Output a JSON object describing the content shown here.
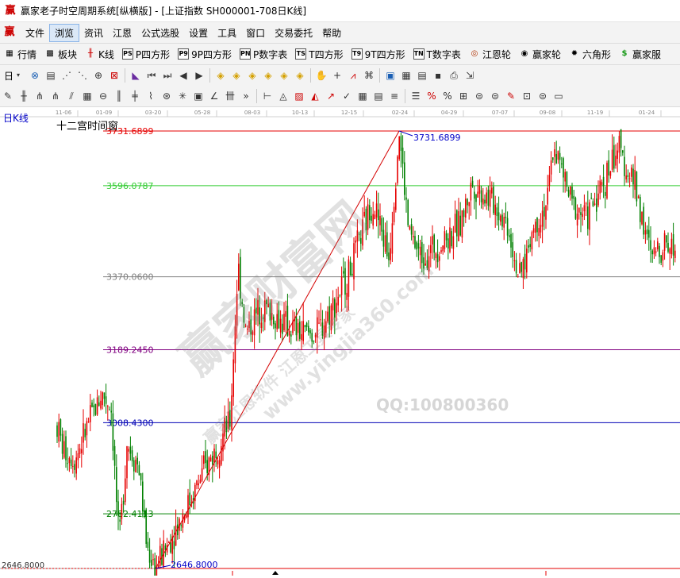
{
  "window": {
    "title": "赢家老子时空周期系统[纵横版] - [上证指数  SH000001-708日K线]"
  },
  "menu": {
    "items": [
      {
        "label": "文件",
        "name": "menu-file"
      },
      {
        "label": "浏览",
        "name": "menu-browse",
        "active": true
      },
      {
        "label": "资讯",
        "name": "menu-info"
      },
      {
        "label": "江恩",
        "name": "menu-gann"
      },
      {
        "label": "公式选股",
        "name": "menu-formula"
      },
      {
        "label": "设置",
        "name": "menu-settings"
      },
      {
        "label": "工具",
        "name": "menu-tools"
      },
      {
        "label": "窗口",
        "name": "menu-window"
      },
      {
        "label": "交易委托",
        "name": "menu-trade"
      },
      {
        "label": "帮助",
        "name": "menu-help"
      }
    ]
  },
  "toolbar1": {
    "items": [
      {
        "label": "行情",
        "icon": "quote-grid-icon"
      },
      {
        "label": "板块",
        "icon": "sector-icon"
      },
      {
        "label": "K线",
        "icon": "candlestick-icon"
      },
      {
        "label": "P四方形",
        "icon": "p-square-icon",
        "badge": "PS"
      },
      {
        "label": "9P四方形",
        "icon": "9p-square-icon",
        "badge": "P9"
      },
      {
        "label": "P数字表",
        "icon": "p-number-table-icon",
        "badge": "PN"
      },
      {
        "label": "T四方形",
        "icon": "t-square-icon",
        "badge": "TS"
      },
      {
        "label": "9T四方形",
        "icon": "9t-square-icon",
        "badge": "T9"
      },
      {
        "label": "T数字表",
        "icon": "t-number-table-icon",
        "badge": "TN"
      },
      {
        "label": "江恩轮",
        "icon": "gann-wheel-icon"
      },
      {
        "label": "赢家轮",
        "icon": "winner-wheel-icon"
      },
      {
        "label": "六角形",
        "icon": "hexagon-icon"
      },
      {
        "label": "赢家服",
        "icon": "dollar-icon"
      }
    ]
  },
  "toolbar2": {
    "period_label": "日",
    "icons": [
      "period-dropdown-icon",
      "zoom-icon",
      "doc-icon",
      "chart-up-icon",
      "chart-down-icon",
      "cursor-icon",
      "pattern-icon",
      "flag-icon",
      "skip-first-icon",
      "skip-last-icon",
      "step-back-icon",
      "step-forward-icon",
      "diamond-1-icon",
      "diamond-2-icon",
      "diamond-3-icon",
      "diamond-4-icon",
      "diamond-5-icon",
      "diamond-6-icon",
      "hand-icon",
      "crosshair-icon",
      "trend-icon",
      "tag-icon",
      "calendar-icon",
      "calculator-icon",
      "memo-icon",
      "save-icon",
      "print-icon",
      "export-icon"
    ]
  },
  "toolbar3": {
    "icons": [
      "pen-icon",
      "hline-icon",
      "gann-fan-1-icon",
      "gann-fan-2-icon",
      "fan-icon",
      "grid-icon",
      "ellipse-icon",
      "bars-icon",
      "cross-bars-icon",
      "zigzag-icon",
      "circle-target-icon",
      "star-icon",
      "box-icon",
      "angle-icon",
      "tally-icon",
      "more-icon",
      "pitchfork-icon",
      "triangle-icon",
      "hatch-icon",
      "cone-icon",
      "arrow-icon",
      "check-icon",
      "table-icon",
      "fib-table-icon",
      "stripes-icon",
      "list-icon",
      "percent-mark-icon",
      "percent-icon",
      "gann-box-icon",
      "coin-icon",
      "coin-up-icon",
      "pen-red-icon",
      "gann-square-icon",
      "coin-down-icon",
      "rect-icon"
    ]
  },
  "chart": {
    "period_label": "日K线",
    "panel_title": "十二宫时间窗",
    "watermark_main": "赢家财富网",
    "watermark_sub": "赢家江恩软件 江恩工具专家",
    "watermark_url": "www.yingjia360.com",
    "watermark_qq": "QQ:100800360",
    "top_value_label": "3731.6899",
    "low_value_label": "2646.8000",
    "left_low_label": "2646.8000",
    "colors": {
      "up": "#e60000",
      "down": "#008000",
      "trend": "#d40000"
    }
  },
  "chart_data": {
    "type": "candlestick",
    "symbol": "SH000001",
    "x_tick_labels": [
      "11-06",
      "01-09",
      "03-20",
      "05-28",
      "08-03",
      "10-13",
      "12-15",
      "02-24",
      "04-29",
      "07-07",
      "09-08",
      "11-19",
      "01-24"
    ],
    "levels": [
      {
        "value": "3731.6899",
        "color": "#e60000"
      },
      {
        "value": "3596.0787",
        "color": "#33cc33"
      },
      {
        "value": "3370.0600",
        "color": "#808080"
      },
      {
        "value": "3189.2450",
        "color": "#800080"
      },
      {
        "value": "3008.4300",
        "color": "#0000b4"
      },
      {
        "value": "2782.4113",
        "color": "#008000"
      }
    ],
    "ylim": [
      2646.8,
      3731.6899
    ],
    "high": 3731.6899,
    "low": 2646.8
  }
}
